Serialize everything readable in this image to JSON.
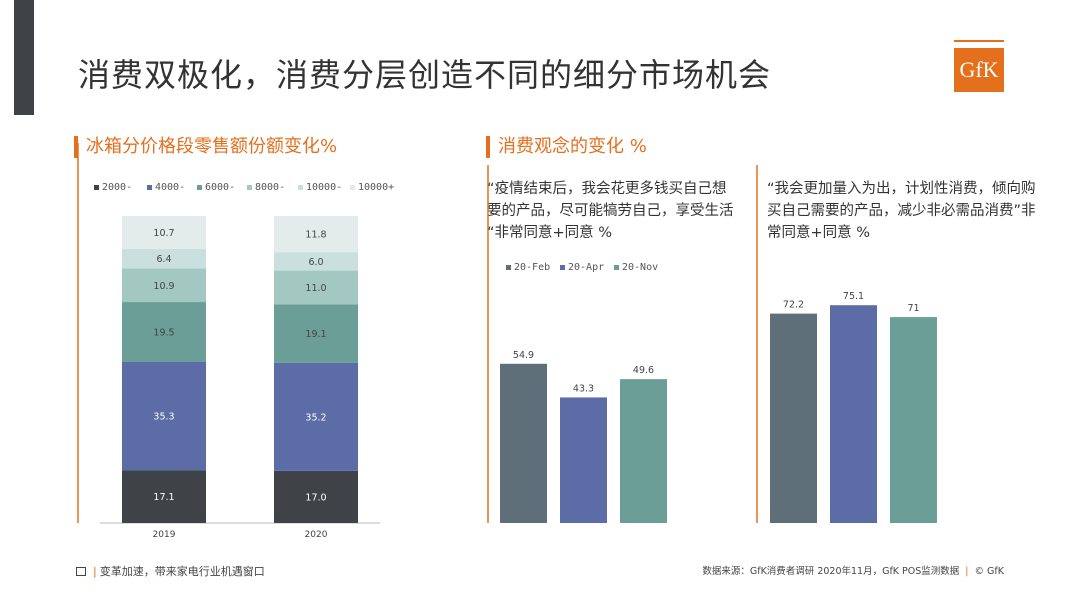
{
  "page": {
    "title": "消费双极化，消费分层创造不同的细分市场机会",
    "logo_text": "GfK",
    "left_section_title": "冰箱分价格段零售额份额变化%",
    "right_section_title": "消费观念的变化 %",
    "quote_left": "“疫情结束后，我会花更多钱买自己想要的产品，尽可能犒劳自己，享受生活 “非常同意+同意 %",
    "quote_right": "“我会更加量入为出，计划性消费，倾向购买自己需要的产品，减少非必需品消费”非常同意+同意 %",
    "footer_left": "变革加速，带来家电行业机遇窗口",
    "footer_right": "数据来源：GfK消费者调研 2020年11月，GfK POS监测数据",
    "footer_copyright": "© GfK"
  },
  "chart_data": [
    {
      "type": "bar",
      "stacked": true,
      "title": "冰箱分价格段零售额份额变化%",
      "categories": [
        "2019",
        "2020"
      ],
      "series": [
        {
          "name": "2000-",
          "color": "#3f4246",
          "values": [
            17.1,
            17.0
          ]
        },
        {
          "name": "4000-",
          "color": "#5b6ca6",
          "values": [
            35.3,
            35.2
          ]
        },
        {
          "name": "6000-",
          "color": "#6b9e96",
          "values": [
            19.5,
            19.1
          ]
        },
        {
          "name": "8000-",
          "color": "#a3c8c2",
          "values": [
            10.9,
            11.0
          ]
        },
        {
          "name": "10000-",
          "color": "#c9e0de",
          "values": [
            6.4,
            6.0
          ]
        },
        {
          "name": "10000+",
          "color": "#e3ecea",
          "values": [
            10.7,
            11.8
          ]
        }
      ],
      "legend": "top",
      "grid": false
    },
    {
      "type": "bar",
      "title": "",
      "categories": [
        "20-Feb",
        "20-Apr",
        "20-Nov"
      ],
      "colors": [
        "#5f6f7a",
        "#5b6ca6",
        "#6b9e96"
      ],
      "values": [
        54.9,
        43.3,
        49.6
      ],
      "legend": "top-left",
      "grid": false
    },
    {
      "type": "bar",
      "title": "",
      "categories": [
        "20-Feb",
        "20-Apr",
        "20-Nov"
      ],
      "colors": [
        "#5f6f7a",
        "#5b6ca6",
        "#6b9e96"
      ],
      "values": [
        72.2,
        75.1,
        71
      ],
      "grid": false
    }
  ]
}
